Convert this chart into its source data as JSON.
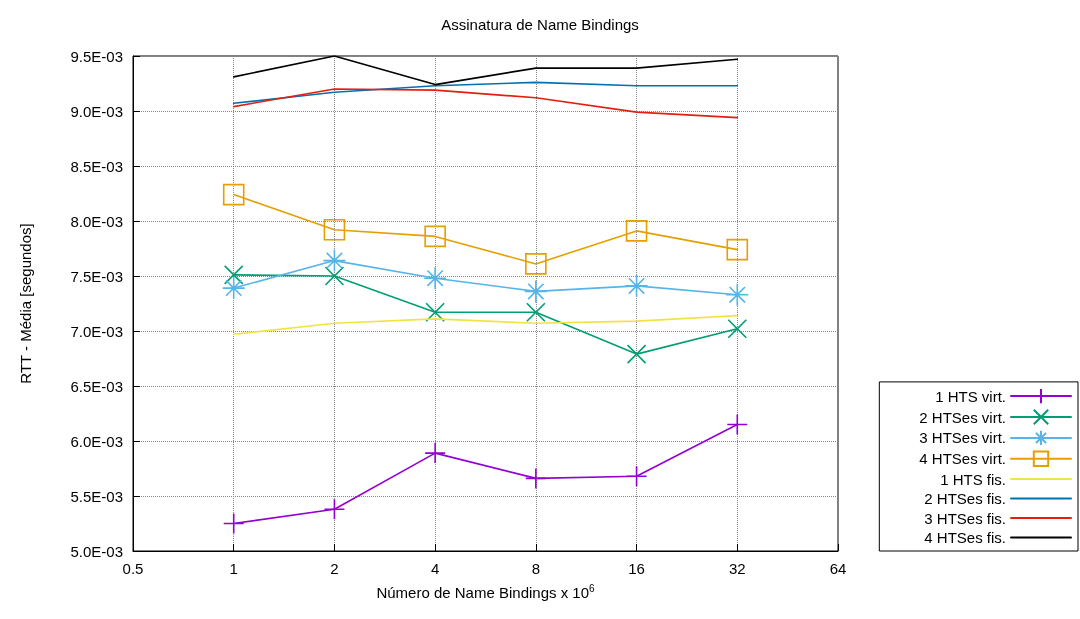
{
  "chart_data": {
    "type": "line",
    "title": "Assinatura de Name Bindings",
    "xlabel": "Número de Name Bindings x 10$^{6}$",
    "ylabel": "RTT - Média [segundos]",
    "x": [
      1,
      2,
      4,
      8,
      16,
      32
    ],
    "log": "x",
    "xlim": [
      0.5,
      64
    ],
    "xticks": [
      0.5,
      1,
      2,
      4,
      8,
      16,
      32,
      64
    ],
    "ylim": [
      0.005,
      0.0095
    ],
    "yticks": [
      {
        "value": 0.005,
        "label": "5.0E-03"
      },
      {
        "value": 0.0055,
        "label": "5.5E-03"
      },
      {
        "value": 0.006,
        "label": "6.0E-03"
      },
      {
        "value": 0.0065,
        "label": "6.5E-03"
      },
      {
        "value": 0.007,
        "label": "7.0E-03"
      },
      {
        "value": 0.0075,
        "label": "7.5E-03"
      },
      {
        "value": 0.008,
        "label": "8.0E-03"
      },
      {
        "value": 0.0085,
        "label": "8.5E-03"
      },
      {
        "value": 0.009,
        "label": "9.0E-03"
      },
      {
        "value": 0.0095,
        "label": "9.5E-03"
      }
    ],
    "grid": true,
    "legend": "bottom right",
    "line_style": "solid",
    "series": [
      {
        "name": "1 HTS virt.",
        "color": "#9400d3",
        "marker": "plus",
        "values": [
          0.00525,
          0.00538,
          0.00589,
          0.00566,
          0.00568,
          0.00615
        ]
      },
      {
        "name": "2 HTSes virt.",
        "color": "#009e73",
        "marker": "x",
        "values": [
          0.00751,
          0.0075,
          0.00717,
          0.00717,
          0.00679,
          0.00702
        ]
      },
      {
        "name": "3 HTSes virt.",
        "color": "#56b4e9",
        "marker": "cross",
        "values": [
          0.00739,
          0.00764,
          0.00748,
          0.00736,
          0.00741,
          0.00733
        ]
      },
      {
        "name": "4 HTSes virt.",
        "color": "#e69f00",
        "marker": "square",
        "values": [
          0.00824,
          0.00792,
          0.00786,
          0.00761,
          0.00791,
          0.00774
        ]
      },
      {
        "name": "1 HTS fis.",
        "color": "#f0e442",
        "marker": "none",
        "values": [
          0.00697,
          0.00707,
          0.00711,
          0.00707,
          0.00709,
          0.00714
        ]
      },
      {
        "name": "2 HTSes fis.",
        "color": "#0072b2",
        "marker": "none",
        "values": [
          0.00907,
          0.00917,
          0.00923,
          0.00926,
          0.00923,
          0.00923
        ]
      },
      {
        "name": "3 HTSes fis.",
        "color": "#e51e10",
        "marker": "none",
        "values": [
          0.00904,
          0.0092,
          0.00919,
          0.00912,
          0.00899,
          0.00894
        ]
      },
      {
        "name": "4 HTSes fis.",
        "color": "#000000",
        "marker": "none",
        "values": [
          0.00931,
          0.0095,
          0.00924,
          0.00939,
          0.00939,
          0.00947
        ]
      }
    ]
  }
}
